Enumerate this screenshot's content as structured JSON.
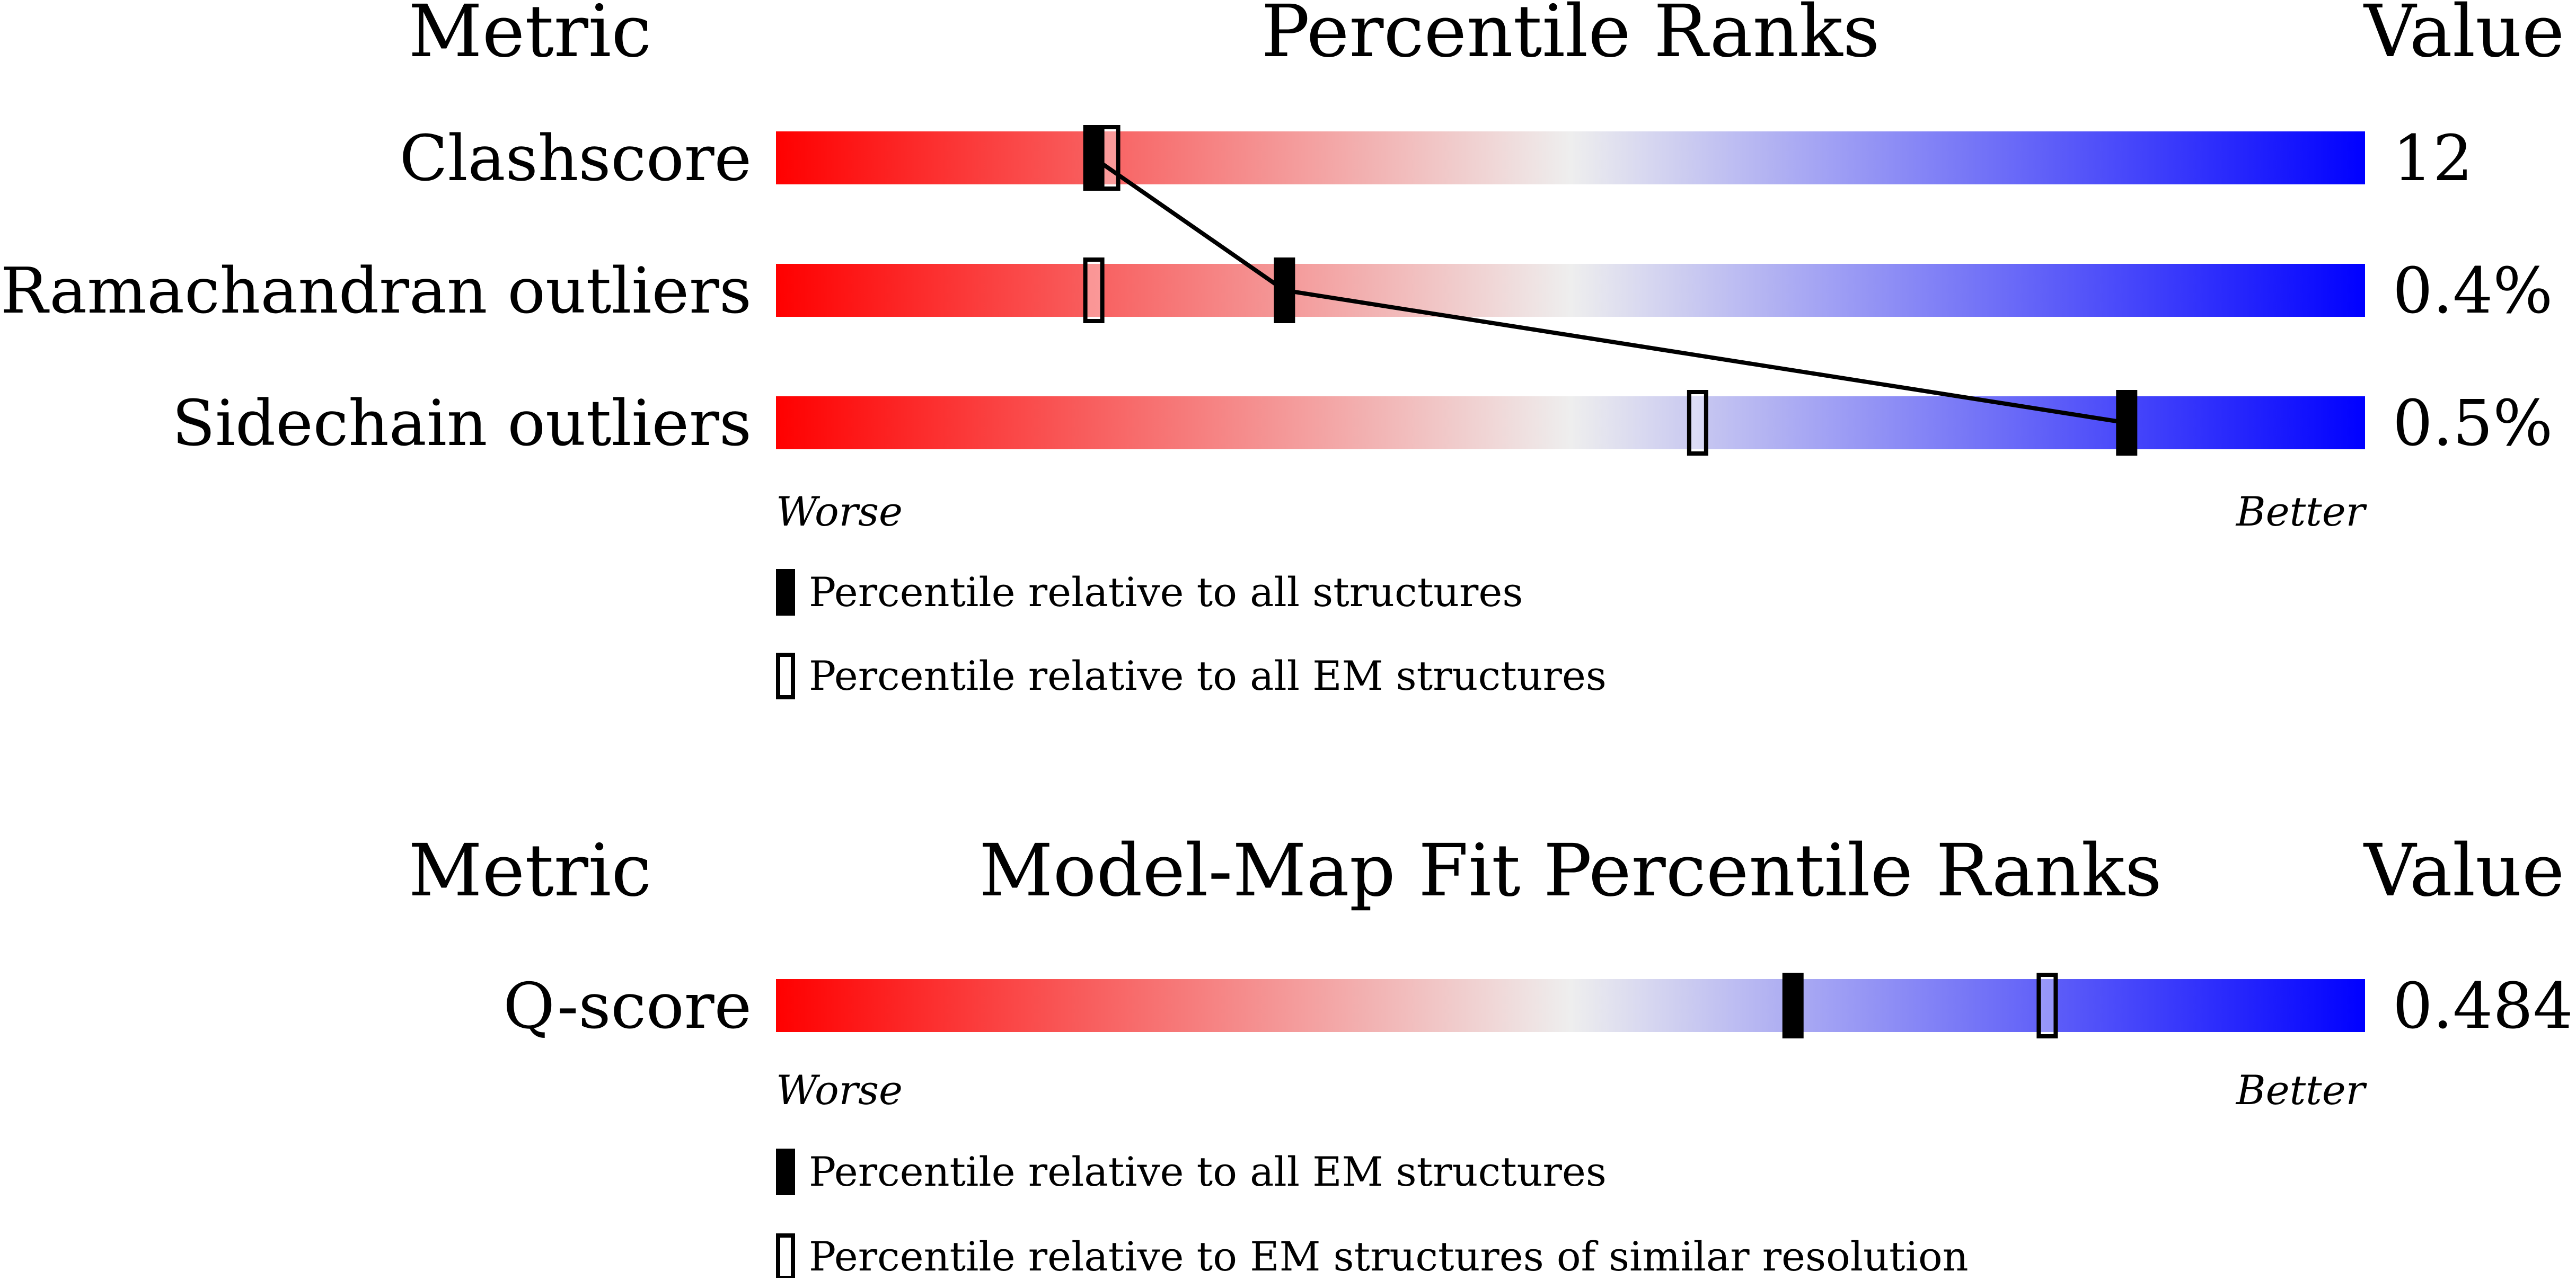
{
  "chart_data": [
    {
      "type": "percentile-ranks",
      "title": "Percentile Ranks",
      "metric_header": "Metric",
      "value_header": "Value",
      "axis_left_label": "Worse",
      "axis_right_label": "Better",
      "axis_range": [
        0,
        100
      ],
      "colors": {
        "worse": "#ff0000",
        "middle": "#eeeeee",
        "better": "#0000ff"
      },
      "metrics": [
        {
          "name": "Clashscore",
          "value": "12",
          "percentile_all": 20,
          "percentile_em": 21
        },
        {
          "name": "Ramachandran outliers",
          "value": "0.4%",
          "percentile_all": 32,
          "percentile_em": 20
        },
        {
          "name": "Sidechain outliers",
          "value": "0.5%",
          "percentile_all": 85,
          "percentile_em": 58
        }
      ],
      "connect_percentile_all": true,
      "legend": [
        {
          "marker": "filled",
          "label": "Percentile relative to all structures"
        },
        {
          "marker": "open",
          "label": "Percentile relative to all EM structures"
        }
      ]
    },
    {
      "type": "percentile-ranks",
      "title": "Model-Map Fit Percentile Ranks",
      "metric_header": "Metric",
      "value_header": "Value",
      "axis_left_label": "Worse",
      "axis_right_label": "Better",
      "axis_range": [
        0,
        100
      ],
      "colors": {
        "worse": "#ff0000",
        "middle": "#eeeeee",
        "better": "#0000ff"
      },
      "metrics": [
        {
          "name": "Q-score",
          "value": "0.484",
          "percentile_all": 64,
          "percentile_em": 80
        }
      ],
      "connect_percentile_all": false,
      "legend": [
        {
          "marker": "filled",
          "label": "Percentile relative to all EM structures"
        },
        {
          "marker": "open",
          "label": "Percentile relative to EM structures of similar resolution"
        }
      ]
    }
  ]
}
